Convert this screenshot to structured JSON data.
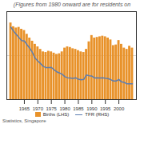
{
  "chart_data": {
    "type": "bar",
    "title": "(Figures from 1980 onward are for residents on",
    "annotations": [
      "Statistics, Singapore"
    ],
    "x": [
      1960,
      1961,
      1962,
      1963,
      1964,
      1965,
      1966,
      1967,
      1968,
      1969,
      1970,
      1971,
      1972,
      1973,
      1974,
      1975,
      1976,
      1977,
      1978,
      1979,
      1980,
      1981,
      1982,
      1983,
      1984,
      1985,
      1986,
      1987,
      1988,
      1989,
      1990,
      1991,
      1992,
      1993,
      1994,
      1995,
      1996,
      1997,
      1998,
      1999,
      2000,
      2001,
      2002,
      2003,
      2004,
      2005
    ],
    "series": [
      {
        "name": "Births (LHS)",
        "type": "bar",
        "color": "#E8922A",
        "values": [
          61000,
          58000,
          57000,
          57500,
          56000,
          55000,
          52000,
          49000,
          46500,
          44000,
          42000,
          40000,
          38000,
          37500,
          38500,
          38000,
          37000,
          36000,
          36500,
          38000,
          41000,
          42000,
          41500,
          40500,
          40000,
          39000,
          38000,
          37500,
          40000,
          46000,
          51000,
          49000,
          49500,
          50000,
          50500,
          50000,
          49000,
          47500,
          43000,
          43500,
          47000,
          44000,
          41000,
          40000,
          42500,
          41000
        ]
      },
      {
        "name": "TFR (RHS)",
        "type": "line",
        "color": "#5B7DB1",
        "axis": "y2",
        "values": [
          5.76,
          5.45,
          5.19,
          4.94,
          4.7,
          4.66,
          4.36,
          4.09,
          3.74,
          3.29,
          3.07,
          2.87,
          2.65,
          2.54,
          2.55,
          2.56,
          2.38,
          2.21,
          2.12,
          2.02,
          1.82,
          1.74,
          1.72,
          1.69,
          1.74,
          1.62,
          1.57,
          1.6,
          1.96,
          1.9,
          1.87,
          1.72,
          1.74,
          1.72,
          1.74,
          1.7,
          1.67,
          1.58,
          1.48,
          1.48,
          1.6,
          1.41,
          1.37,
          1.25,
          1.26,
          1.25
        ]
      }
    ],
    "xlim": [
      1958.5,
      2006.5
    ],
    "xticks": [
      1965,
      1970,
      1975,
      1980,
      1985,
      1990,
      1995,
      2000
    ],
    "ylim": [
      0,
      70000
    ],
    "yticks": [
      0,
      35000
    ],
    "y2lim": [
      0,
      7.0
    ],
    "grid": true,
    "tick_labels": "x"
  }
}
